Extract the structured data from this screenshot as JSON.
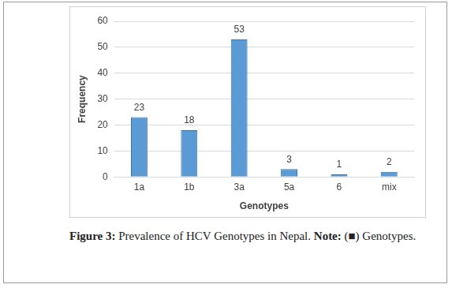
{
  "chart_data": {
    "type": "bar",
    "categories": [
      "1a",
      "1b",
      "3a",
      "5a",
      "6",
      "mix"
    ],
    "values": [
      23,
      18,
      53,
      3,
      1,
      2
    ],
    "color": "#5b9bd5",
    "x_label": "Genotypes",
    "y_label": "Frequency",
    "ylim": [
      0,
      60
    ],
    "yticks": [
      0,
      10,
      20,
      30,
      40,
      50,
      60
    ],
    "grid": true,
    "data_labels": true
  },
  "caption": {
    "label": "Figure 3:",
    "text": "Prevalence of HCV Genotypes in Nepal.",
    "note_label": "Note:",
    "note_text": "(■) Genotypes."
  }
}
